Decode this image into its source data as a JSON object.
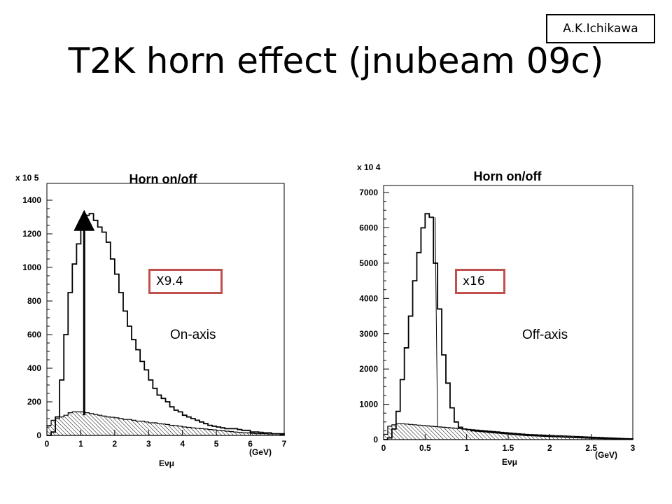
{
  "slide": {
    "title": "T2K horn effect (jnubeam 09c)",
    "author": "A.K.Ichikawa"
  },
  "colors": {
    "callout_border": "#c0504d",
    "histogram": "#000000",
    "hatch": "#000000"
  },
  "chart_data": [
    {
      "type": "histogram",
      "title": "Horn on/off",
      "y_exponent": "x 10 5",
      "xlabel": "Eνμ",
      "xunit": "(GeV)",
      "xlim": [
        0,
        7
      ],
      "ylim": [
        0,
        1500
      ],
      "x_ticks": [
        0,
        1,
        2,
        3,
        4,
        5,
        6,
        7
      ],
      "x_tick_labels": [
        "0",
        "1",
        "2",
        "3",
        "4",
        "5",
        "6",
        "7"
      ],
      "y_ticks": [
        0,
        200,
        400,
        600,
        800,
        1000,
        1200,
        1400
      ],
      "y_tick_labels": [
        "0",
        "200",
        "400",
        "600",
        "800",
        "1000",
        "1200",
        "1400"
      ],
      "bin_width": 0.125,
      "series": [
        {
          "values": [
            0,
            20,
            110,
            330,
            600,
            850,
            1020,
            1140,
            1240,
            1310,
            1320,
            1280,
            1240,
            1210,
            1150,
            1050,
            960,
            850,
            740,
            650,
            570,
            510,
            440,
            390,
            330,
            280,
            240,
            220,
            200,
            170,
            150,
            140,
            120,
            110,
            100,
            90,
            80,
            70,
            60,
            55,
            50,
            45,
            40,
            40,
            40,
            35,
            30,
            30,
            20,
            20,
            18,
            15,
            15,
            10,
            10,
            10
          ]
        },
        {
          "fill": "hatched",
          "values": [
            60,
            90,
            100,
            110,
            120,
            135,
            140,
            140,
            140,
            135,
            130,
            125,
            120,
            115,
            110,
            108,
            105,
            100,
            95,
            95,
            90,
            85,
            85,
            80,
            75,
            75,
            70,
            68,
            65,
            60,
            58,
            55,
            50,
            48,
            45,
            42,
            40,
            38,
            35,
            33,
            30,
            28,
            25,
            23,
            20,
            18,
            15,
            15,
            12,
            10,
            10,
            10,
            8,
            8,
            8,
            5
          ]
        }
      ],
      "annotation": {
        "text": "X9.4",
        "arrow_from": [
          1.1,
          120
        ],
        "arrow_to": [
          1.1,
          1280
        ]
      },
      "region_label": "On-axis"
    },
    {
      "type": "histogram",
      "title": "Horn on/off",
      "y_exponent": "x 10 4",
      "xlabel": "Eνμ",
      "xunit": "(GeV)",
      "xlim": [
        0,
        3
      ],
      "ylim": [
        0,
        7200
      ],
      "x_ticks": [
        0,
        0.5,
        1,
        1.5,
        2,
        2.5,
        3
      ],
      "x_tick_labels": [
        "0",
        "0.5",
        "1",
        "1.5",
        "2",
        "2.5",
        "3"
      ],
      "y_ticks": [
        0,
        1000,
        2000,
        3000,
        4000,
        5000,
        6000,
        7000
      ],
      "y_tick_labels": [
        "0",
        "1000",
        "2000",
        "3000",
        "4000",
        "5000",
        "6000",
        "7000"
      ],
      "bin_width": 0.05,
      "series": [
        {
          "values": [
            0,
            50,
            300,
            800,
            1700,
            2600,
            3500,
            4500,
            5300,
            6000,
            6400,
            6300,
            5000,
            3700,
            2400,
            1600,
            900,
            500,
            350,
            300,
            280,
            250,
            240,
            230,
            220,
            210,
            200,
            190,
            180,
            170,
            160,
            150,
            140,
            130,
            120,
            115,
            110,
            105,
            100,
            95,
            90,
            85,
            80,
            75,
            70,
            65,
            60,
            55,
            50,
            45,
            40,
            40,
            35,
            30,
            30,
            25,
            25,
            20,
            20,
            20
          ]
        },
        {
          "fill": "hatched",
          "values": [
            150,
            380,
            420,
            450,
            450,
            440,
            430,
            420,
            410,
            400,
            390,
            380,
            370,
            360,
            350,
            340,
            330,
            320,
            310,
            300,
            290,
            280,
            270,
            260,
            250,
            240,
            230,
            220,
            210,
            200,
            190,
            180,
            170,
            160,
            150,
            145,
            140,
            135,
            130,
            125,
            120,
            115,
            110,
            105,
            100,
            95,
            90,
            85,
            80,
            75,
            70,
            65,
            60,
            55,
            50,
            45,
            40,
            35,
            30,
            25
          ]
        }
      ],
      "annotation": {
        "text": "x16",
        "arrow_from": [
          0.65,
          380
        ],
        "arrow_to": [
          0.62,
          6300
        ]
      },
      "region_label": "Off-axis"
    }
  ]
}
